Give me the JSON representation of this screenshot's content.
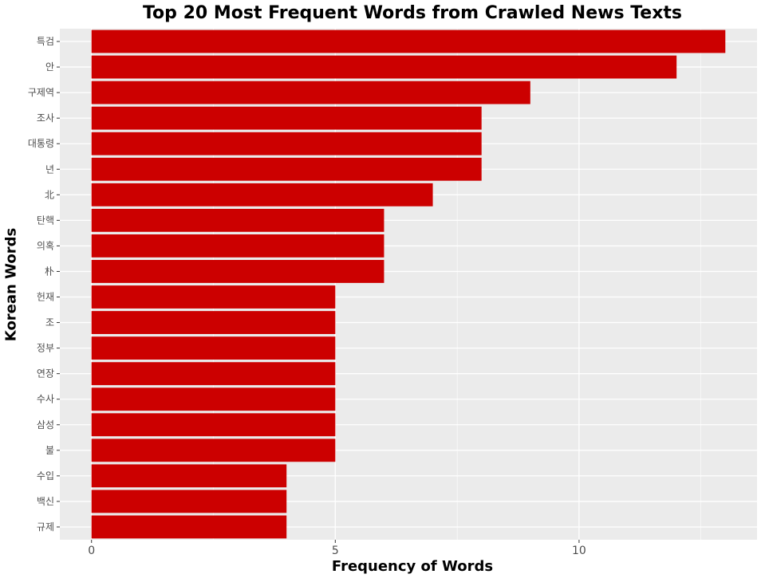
{
  "chart_data": {
    "type": "bar",
    "orientation": "horizontal",
    "title": "Top 20 Most Frequent Words from Crawled News Texts",
    "xlabel": "Frequency of Words",
    "ylabel": "Korean Words",
    "categories": [
      "특검",
      "안",
      "구제역",
      "조사",
      "대통령",
      "년",
      "北",
      "탄핵",
      "의혹",
      "朴",
      "헌재",
      "조",
      "정부",
      "연장",
      "수사",
      "삼성",
      "불",
      "수입",
      "백신",
      "규제"
    ],
    "values": [
      13,
      12,
      9,
      8,
      8,
      8,
      7,
      6,
      6,
      6,
      5,
      5,
      5,
      5,
      5,
      5,
      5,
      4,
      4,
      4
    ],
    "xticks": [
      0,
      5,
      10
    ],
    "xlim": [
      -0.65,
      13.65
    ],
    "bar_color": "#CC0000",
    "panel_color": "#EBEBEB",
    "grid": true
  }
}
